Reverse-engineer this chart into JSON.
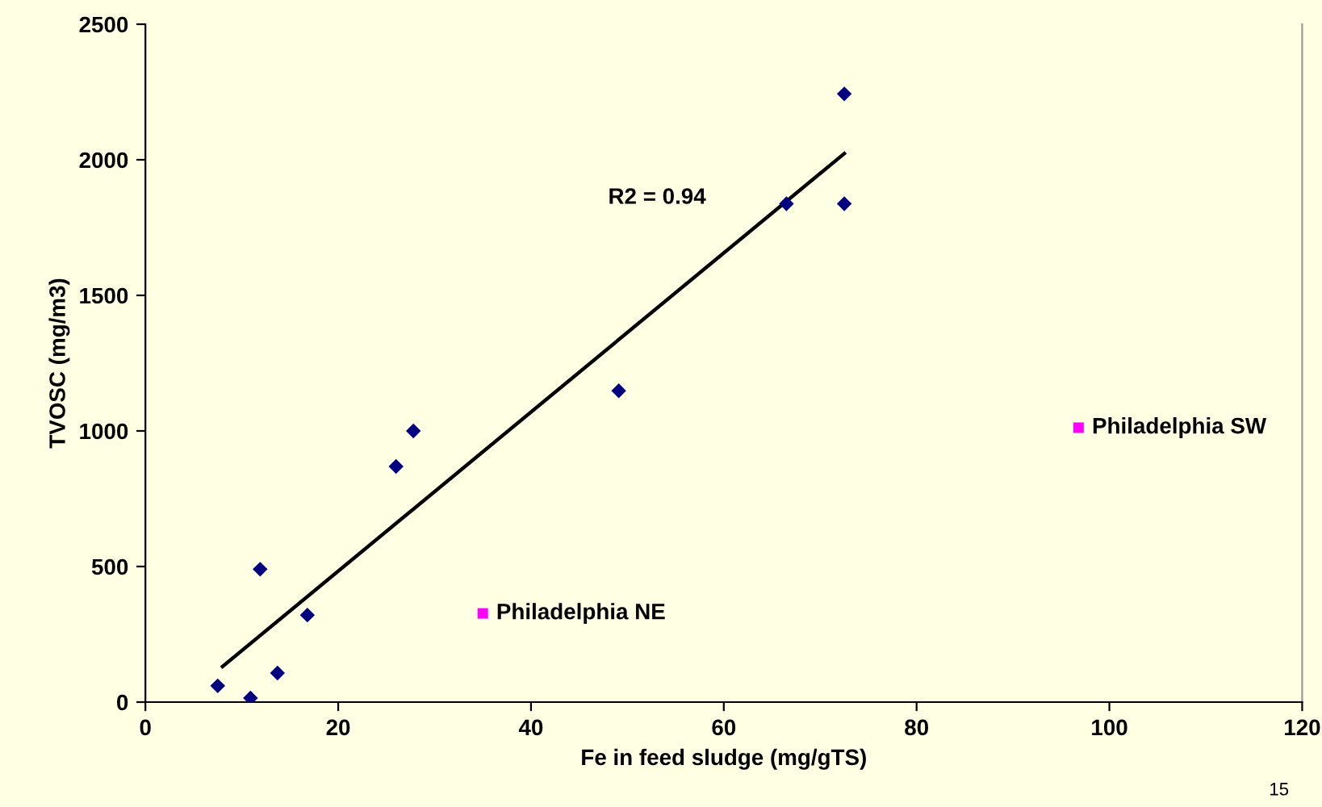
{
  "chart_data": {
    "type": "scatter",
    "xlabel": "Fe in feed sludge (mg/gTS)",
    "ylabel": "TVOSC (mg/m3)",
    "xlim": [
      0,
      120
    ],
    "xticks": [
      0,
      20,
      40,
      60,
      80,
      100,
      120
    ],
    "ylim": [
      0,
      2500
    ],
    "yticks": [
      0,
      500,
      1000,
      1500,
      2000,
      2500
    ],
    "grid": false,
    "legend": false,
    "series": [
      {
        "color": "#000080",
        "marker": "diamond",
        "x": [
          7.5,
          10.9,
          13.7,
          11.9,
          16.8,
          26,
          27.8,
          49.1,
          66.5,
          72.5,
          72.5
        ],
        "values": [
          60,
          15,
          107,
          490,
          321,
          869,
          1000,
          1148,
          1838,
          1838,
          2243
        ]
      },
      {
        "name": "Philadelphia NE",
        "color": "#ff00ff",
        "marker": "square",
        "x": [
          35
        ],
        "values": [
          327
        ]
      },
      {
        "name": "Philadelphia SW",
        "color": "#ff00ff",
        "marker": "square",
        "x": [
          96.8
        ],
        "values": [
          1012
        ]
      },
      {
        "type": "line",
        "color": "#000000",
        "x": [
          8,
          72.5
        ],
        "values": [
          131,
          2023
        ]
      }
    ],
    "annotations": [
      "R2 = 0.94",
      "15"
    ]
  }
}
